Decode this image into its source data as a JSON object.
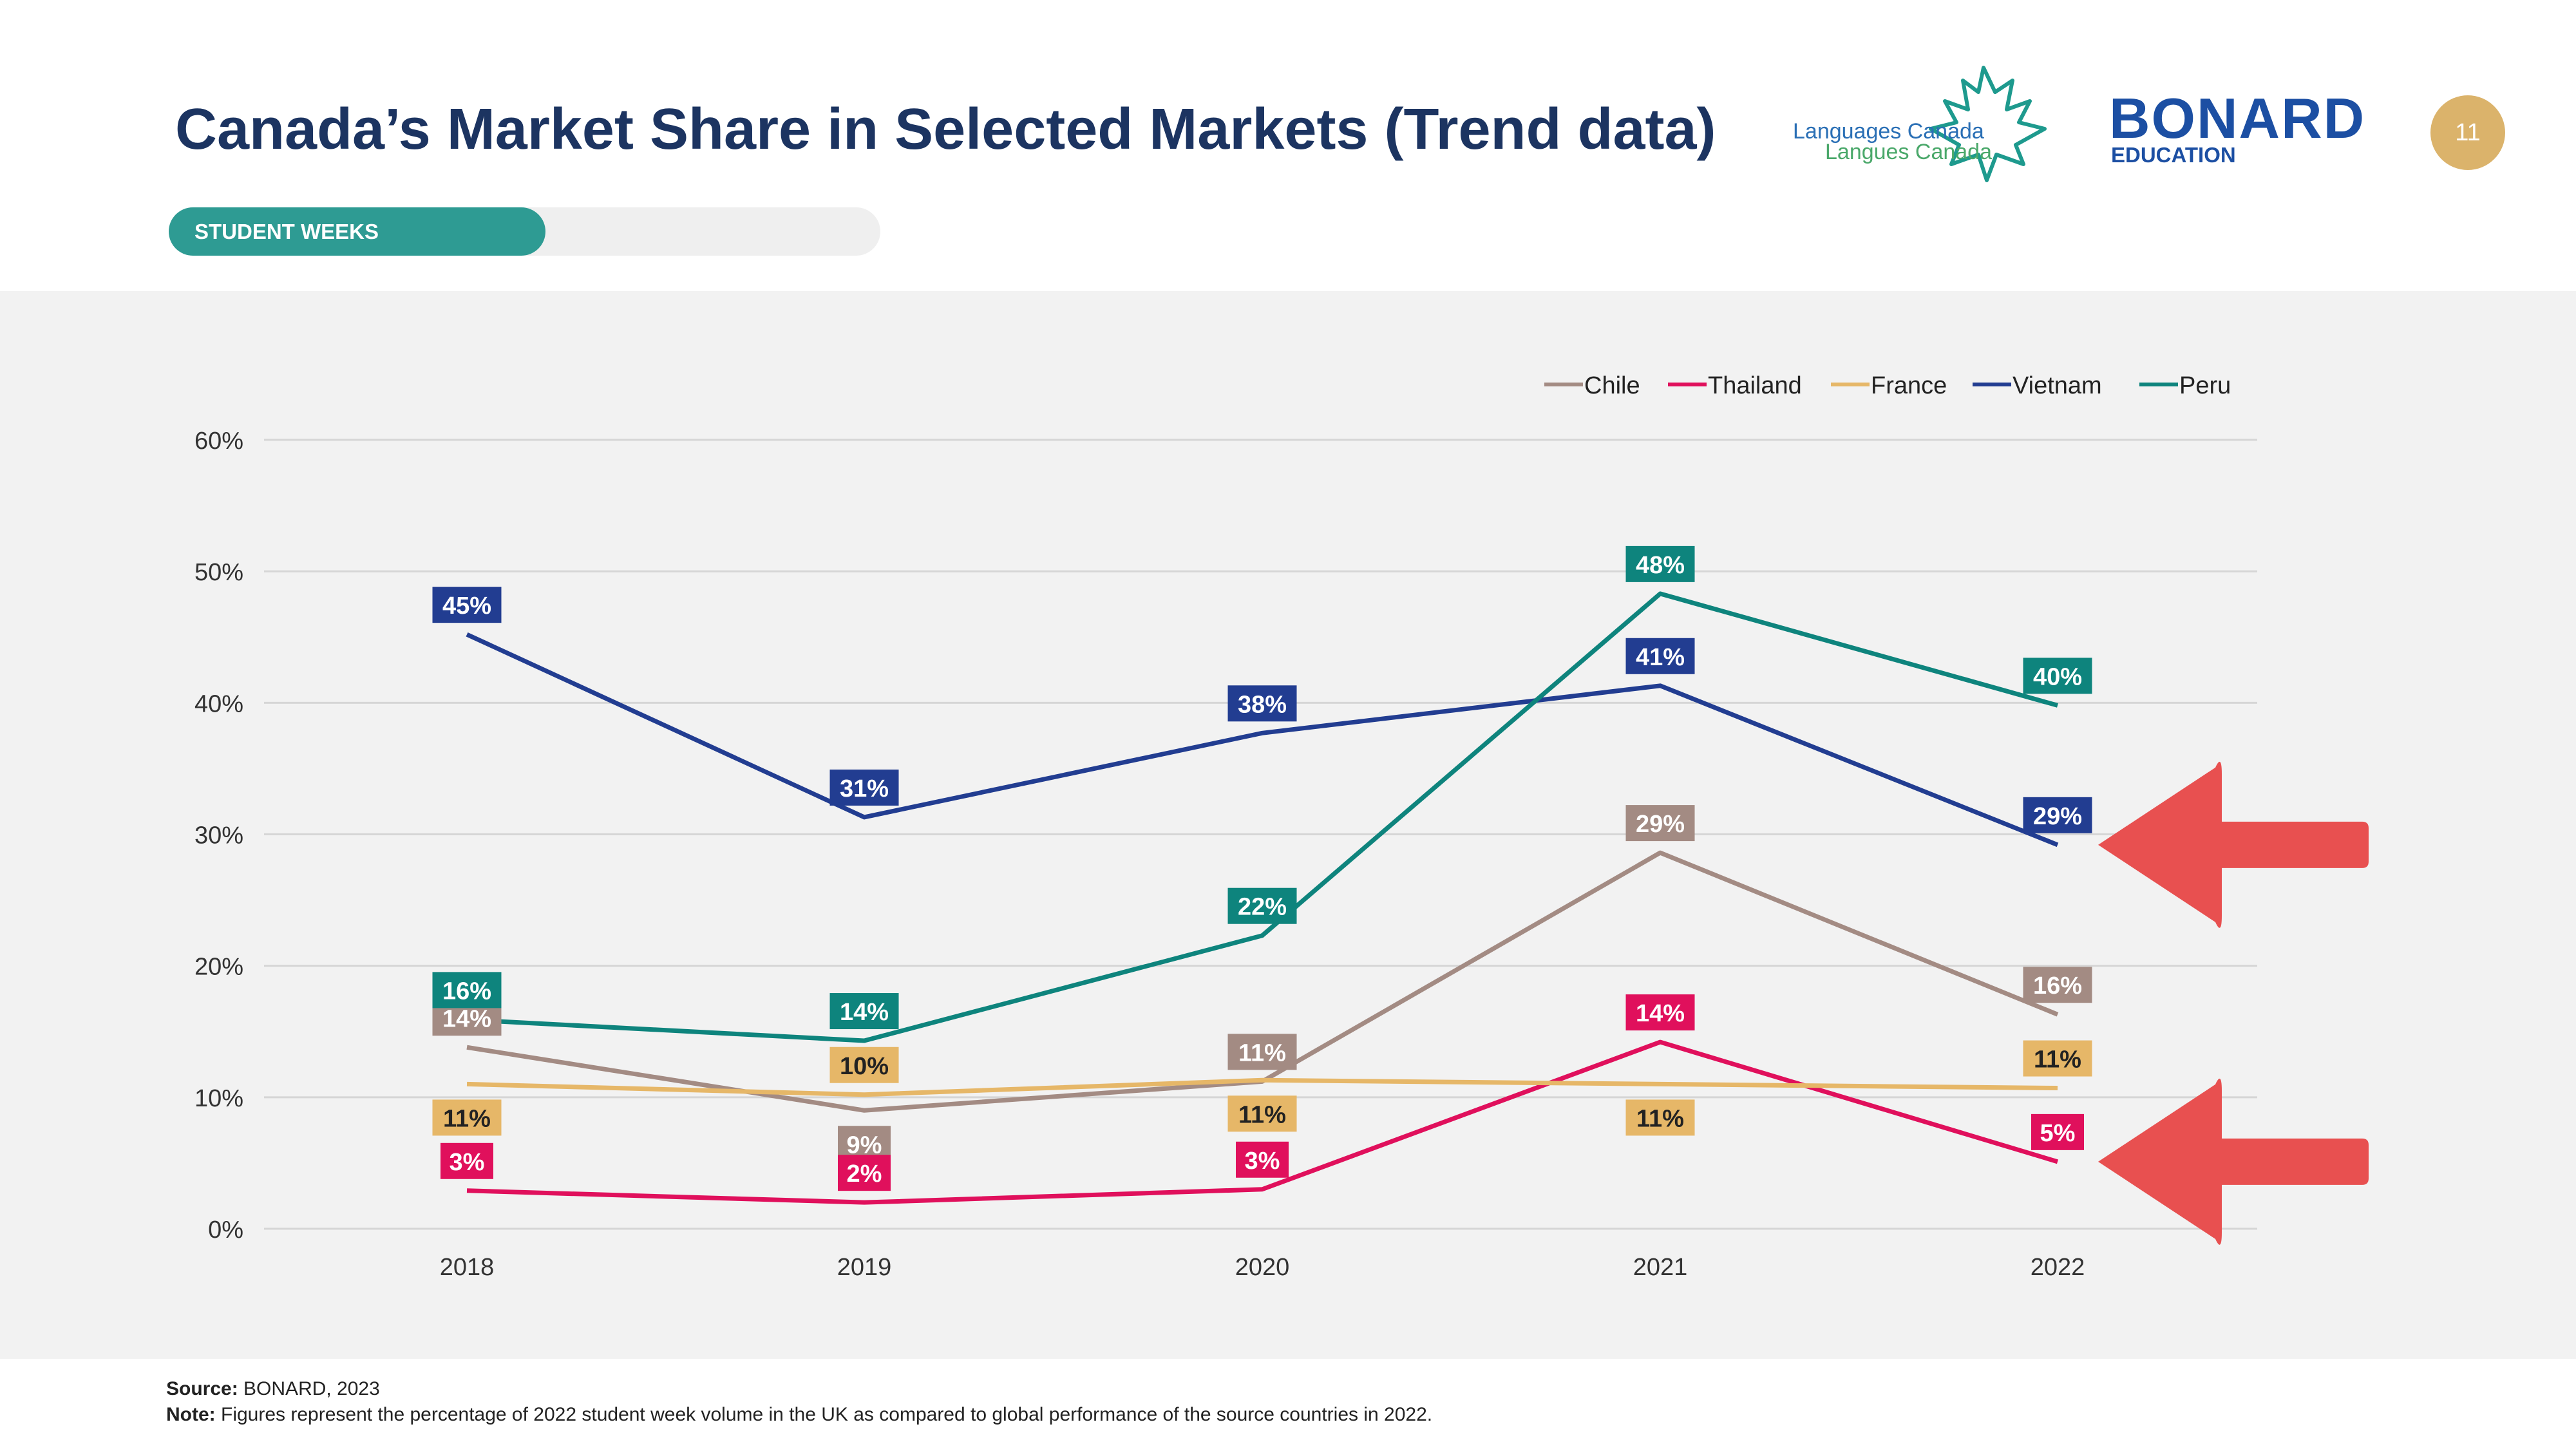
{
  "header": {
    "title": "Canada’s Market Share in Selected Markets (Trend data)",
    "tab_label": "STUDENT WEEKS",
    "page_number": "11"
  },
  "logos": {
    "languages_canada": {
      "line1": "Languages Canada",
      "line2": "Langues Canada"
    },
    "bonard": {
      "name": "BONARD",
      "sub": "EDUCATION"
    }
  },
  "colors": {
    "title": "#1c3461",
    "tab": "#2e9b93",
    "badge": "#dbb36b",
    "arrow": "#e85050"
  },
  "chart_data": {
    "type": "line",
    "x": [
      "2018",
      "2019",
      "2020",
      "2021",
      "2022"
    ],
    "ylim": [
      0,
      60
    ],
    "yticks": [
      "0%",
      "10%",
      "20%",
      "30%",
      "40%",
      "50%",
      "60%"
    ],
    "grid": true,
    "legend_position": "top-right",
    "series": [
      {
        "name": "Chile",
        "color": "#a38b83",
        "values": [
          13.8,
          9.0,
          11.2,
          28.6,
          16.3
        ],
        "labels": [
          "14%",
          "9%",
          "11%",
          "29%",
          "16%"
        ],
        "label_pos": [
          "above",
          "below",
          "above",
          "above",
          "above"
        ]
      },
      {
        "name": "Thailand",
        "color": "#e0105c",
        "values": [
          2.9,
          2.0,
          3.0,
          14.2,
          5.1
        ],
        "labels": [
          "3%",
          "2%",
          "3%",
          "14%",
          "5%"
        ],
        "label_pos": [
          "above",
          "above",
          "above",
          "above",
          "above"
        ]
      },
      {
        "name": "France",
        "color": "#e6b768",
        "values": [
          11.0,
          10.2,
          11.3,
          11.0,
          10.7
        ],
        "labels": [
          "11%",
          "10%",
          "11%",
          "11%",
          "11%"
        ],
        "label_pos": [
          "below",
          "above",
          "below",
          "below",
          "above"
        ]
      },
      {
        "name": "Vietnam",
        "color": "#223d91",
        "values": [
          45.2,
          31.3,
          37.7,
          41.3,
          29.2
        ],
        "labels": [
          "45%",
          "31%",
          "38%",
          "41%",
          "29%"
        ],
        "label_pos": [
          "above",
          "above",
          "above",
          "above",
          "above"
        ]
      },
      {
        "name": "Peru",
        "color": "#0e847d",
        "values": [
          15.9,
          14.3,
          22.3,
          48.3,
          39.8
        ],
        "labels": [
          "16%",
          "14%",
          "22%",
          "48%",
          "40%"
        ],
        "label_pos": [
          "above",
          "above",
          "above",
          "above",
          "above"
        ]
      }
    ],
    "highlight_arrows": [
      {
        "series": "Vietnam",
        "x": "2022"
      },
      {
        "series": "Thailand",
        "x": "2022"
      }
    ]
  },
  "footer": {
    "source_label": "Source:",
    "source_text": "BONARD, 2023",
    "note_label": "Note:",
    "note_text": "Figures represent the percentage of 2022 student week volume in the UK as compared to global performance of the source countries in 2022."
  }
}
